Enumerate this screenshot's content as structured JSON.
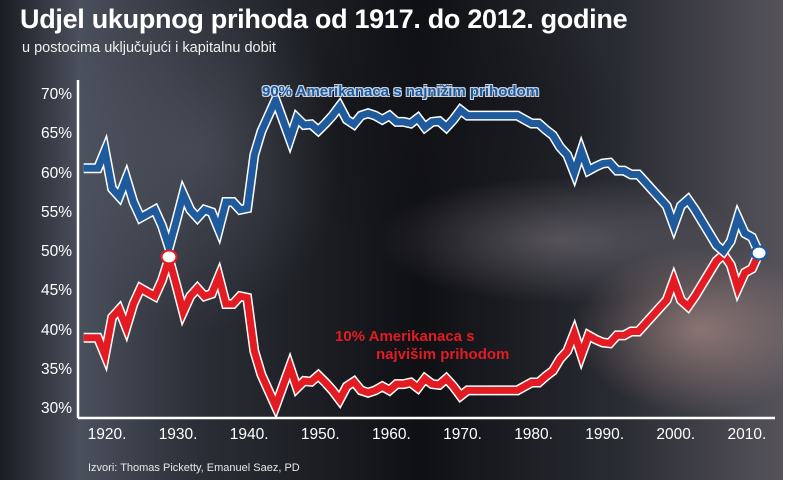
{
  "title": "Udjel ukupnog prihoda od 1917. do 2012. godine",
  "subtitle": "u postocima uključujući i kapitalnu dobit",
  "source": "Izvori: Thomas Picketty, Emanuel Saez, PD",
  "colors": {
    "bottom90": "#1e5a9c",
    "top10": "#e31b23",
    "axis": "#ffffff"
  },
  "legend": {
    "bottom90": "90% Amerikanaca s najnižim prihodom",
    "top10_line1": "10% Amerikanaca s",
    "top10_line2": "najvišim prihodom"
  },
  "y_ticks": [
    "70%",
    "65%",
    "60%",
    "55%",
    "50%",
    "45%",
    "40%",
    "35%",
    "30%"
  ],
  "x_ticks": [
    "1920.",
    "1930.",
    "1940.",
    "1950.",
    "1960.",
    "1970.",
    "1980.",
    "1990.",
    "2000.",
    "2010."
  ],
  "chart_data": {
    "type": "line",
    "title": "Udjel ukupnog prihoda od 1917. do 2012. godine",
    "subtitle": "u postocima uključujući i kapitalnu dobit",
    "xlabel": "",
    "ylabel": "",
    "ylim": [
      30,
      70
    ],
    "xlim": [
      1917,
      2012
    ],
    "grid": false,
    "legend_position": "inline labels",
    "x": [
      1917,
      1918,
      1919,
      1920,
      1921,
      1922,
      1923,
      1924,
      1925,
      1926,
      1927,
      1928,
      1929,
      1930,
      1931,
      1932,
      1933,
      1934,
      1935,
      1936,
      1937,
      1938,
      1939,
      1940,
      1941,
      1942,
      1943,
      1944,
      1945,
      1946,
      1947,
      1948,
      1949,
      1950,
      1951,
      1952,
      1953,
      1954,
      1955,
      1956,
      1957,
      1958,
      1959,
      1960,
      1961,
      1962,
      1963,
      1964,
      1965,
      1966,
      1967,
      1968,
      1969,
      1970,
      1971,
      1972,
      1973,
      1974,
      1975,
      1976,
      1977,
      1978,
      1979,
      1980,
      1981,
      1982,
      1983,
      1984,
      1985,
      1986,
      1987,
      1988,
      1989,
      1990,
      1991,
      1992,
      1993,
      1994,
      1995,
      1996,
      1997,
      1998,
      1999,
      2000,
      2001,
      2002,
      2003,
      2004,
      2005,
      2006,
      2007,
      2008,
      2009,
      2010,
      2011,
      2012
    ],
    "series": [
      {
        "name": "10% Amerikanaca s najvišim prihodom",
        "color": "#e31b23",
        "values": [
          39.2,
          39.2,
          39.2,
          37.0,
          41.8,
          42.8,
          40.5,
          43.5,
          45.5,
          45.0,
          44.5,
          46.5,
          49.3,
          46.0,
          42.5,
          44.5,
          45.5,
          44.5,
          44.8,
          47.0,
          43.5,
          43.5,
          44.5,
          44.3,
          37.5,
          34.5,
          32.5,
          30.5,
          33.0,
          35.5,
          32.8,
          33.7,
          33.6,
          34.4,
          33.5,
          32.5,
          31.3,
          33.0,
          33.6,
          32.5,
          32.2,
          32.5,
          33.0,
          32.5,
          33.3,
          33.3,
          33.5,
          32.8,
          34.0,
          33.3,
          33.2,
          34.0,
          33.0,
          31.8,
          32.5,
          32.5,
          32.5,
          32.5,
          32.5,
          32.5,
          32.5,
          32.5,
          33.0,
          33.5,
          33.5,
          34.3,
          35.0,
          36.5,
          37.5,
          39.8,
          37.0,
          39.5,
          39.0,
          38.6,
          38.5,
          39.5,
          39.5,
          40.0,
          40.0,
          41.0,
          42.0,
          43.0,
          44.0,
          46.5,
          44.0,
          43.2,
          44.5,
          46.0,
          47.5,
          49.0,
          49.8,
          48.5,
          45.5,
          47.5,
          48.0,
          50.0
        ]
      },
      {
        "name": "90% Amerikanaca s najnižim prihodom",
        "color": "#1e5a9c",
        "values": [
          60.8,
          60.8,
          60.8,
          63.0,
          58.2,
          57.2,
          59.5,
          56.5,
          54.5,
          55.0,
          55.5,
          53.5,
          50.7,
          54.0,
          57.5,
          55.5,
          54.5,
          55.5,
          55.2,
          53.0,
          56.5,
          56.5,
          55.5,
          55.7,
          62.5,
          65.5,
          67.5,
          69.5,
          67.0,
          64.5,
          67.2,
          66.3,
          66.4,
          65.6,
          66.5,
          67.5,
          68.7,
          67.0,
          66.4,
          67.5,
          67.8,
          67.5,
          67.0,
          67.5,
          66.7,
          66.7,
          66.5,
          67.2,
          66.0,
          66.7,
          66.8,
          66.0,
          67.0,
          68.2,
          67.5,
          67.5,
          67.5,
          67.5,
          67.5,
          67.5,
          67.5,
          67.5,
          67.0,
          66.5,
          66.5,
          65.7,
          65.0,
          63.5,
          62.5,
          60.2,
          63.0,
          60.5,
          61.0,
          61.4,
          61.5,
          60.5,
          60.5,
          60.0,
          60.0,
          59.0,
          58.0,
          57.0,
          56.0,
          53.5,
          56.0,
          56.8,
          55.5,
          54.0,
          52.5,
          51.0,
          50.2,
          51.5,
          54.5,
          52.5,
          52.0,
          50.0
        ]
      }
    ],
    "markers": [
      {
        "x": 1929,
        "y": 49.5,
        "style": "white circle, red outline",
        "note": "crossing point"
      },
      {
        "x": 2012,
        "y": 50.0,
        "style": "white circle, blue outline",
        "note": "crossing point"
      }
    ]
  }
}
